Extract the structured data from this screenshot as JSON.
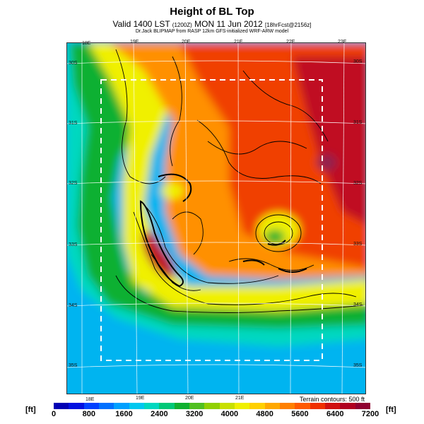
{
  "title": "Height of BL Top",
  "subtitle": {
    "main_prefix": "Valid 1400 LST",
    "utc": "(1200Z)",
    "main_suffix": "MON 11 Jun 2012",
    "forecast_tag": "[18hrFcst@2156z]"
  },
  "credit": "Dr.Jack BLIPMAP from RASP 12km GFS-initialized WRF-ARW model",
  "terrain_note": "Terrain contours: 500 ft",
  "unit_label": "[ft]",
  "longitude_labels_top": [
    "18E",
    "19E",
    "20E",
    "21E",
    "22E",
    "23E"
  ],
  "longitude_labels_bottom": [
    "18E",
    "19E",
    "20E",
    "21E"
  ],
  "latitude_labels_right": [
    "30S",
    "31S",
    "32S",
    "33S",
    "34S",
    "35S"
  ],
  "latitude_labels_left": [
    "30S",
    "31S",
    "32S",
    "33S",
    "34S",
    "35S"
  ],
  "colorbar": {
    "tick_labels": [
      "0",
      "800",
      "1600",
      "2400",
      "3200",
      "4000",
      "4800",
      "5600",
      "6400",
      "7200"
    ],
    "colors": [
      "#0000b4",
      "#0010e0",
      "#0040ff",
      "#0070ff",
      "#00a0ff",
      "#00c8f0",
      "#00d8c0",
      "#00c878",
      "#10b030",
      "#50c020",
      "#90d000",
      "#c8e000",
      "#f0f000",
      "#ffd000",
      "#ffa800",
      "#ff8000",
      "#ff5a00",
      "#f03000",
      "#d01010",
      "#b00020",
      "#900030"
    ]
  },
  "map_colors": {
    "ocean_deep": "#0040ff",
    "ocean": "#00b4f0",
    "coast": "#00d8c0",
    "green": "#10b030",
    "yellow": "#f0f000",
    "orange": "#ff9000",
    "red": "#f04000",
    "dark_red": "#c01020",
    "max": "#902050"
  }
}
